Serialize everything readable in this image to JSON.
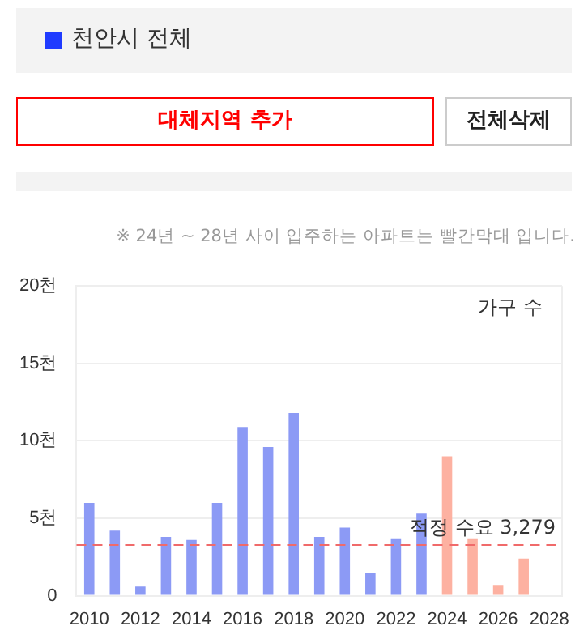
{
  "chart_data": {
    "type": "bar",
    "title": "천안시 전체",
    "ylabel": "가구 수",
    "annotations": [
      "대체지역 추가",
      "전체삭제",
      "※ 24년 ~ 28년 사이 입주하는 아파트는 빨간막대 입니다."
    ],
    "categories": [
      "2010",
      null,
      "2012",
      null,
      "2014",
      null,
      "2016",
      null,
      "2018",
      null,
      "2020",
      null,
      "2022",
      null,
      "2024",
      null,
      "2026",
      null,
      "2028"
    ],
    "values": [
      6.0,
      4.2,
      0.6,
      3.8,
      3.6,
      6.0,
      10.9,
      9.6,
      11.8,
      3.8,
      4.4,
      1.5,
      3.7,
      5.3,
      9.0,
      3.7,
      0.7,
      2.4,
      null
    ],
    "colors": [
      "#8c9af5",
      "#8c9af5",
      "#8c9af5",
      "#8c9af5",
      "#8c9af5",
      "#8c9af5",
      "#8c9af5",
      "#8c9af5",
      "#8c9af5",
      "#8c9af5",
      "#8c9af5",
      "#8c9af5",
      "#8c9af5",
      "#8c9af5",
      "#fdb1a1",
      "#fdb1a1",
      "#fdb1a1",
      "#fdb1a1",
      "#fdb1a1"
    ],
    "ylim": [
      0,
      20
    ],
    "yticks": [
      0,
      {
        "value": 5,
        "label": "5천"
      },
      {
        "value": 10,
        "label": "10천"
      },
      {
        "value": 15,
        "label": "15천"
      },
      {
        "value": 20,
        "label": "20천"
      }
    ],
    "grid": "y",
    "legend": false,
    "ref_lines": [
      {
        "axis": "y",
        "value": 3.279,
        "label": "적정 수요 3,279",
        "color": "#f06a6a",
        "line_style": "dashed"
      }
    ]
  }
}
